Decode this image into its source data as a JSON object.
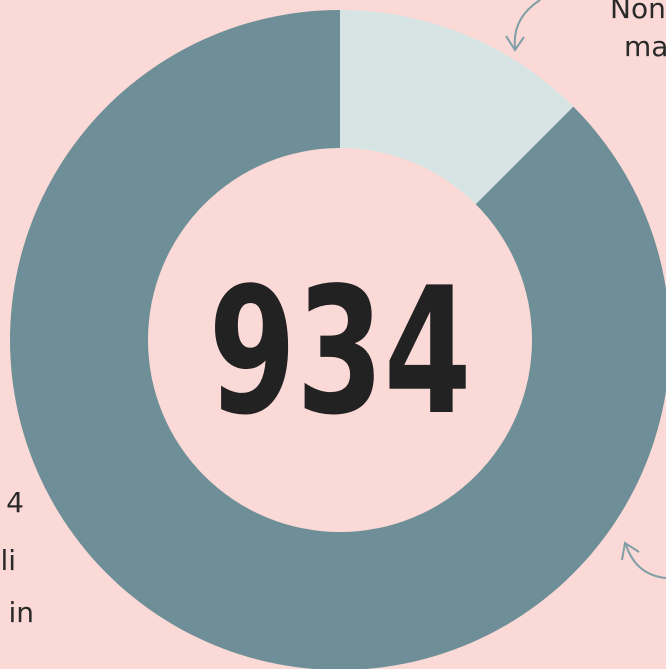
{
  "chart_data": {
    "type": "pie",
    "center_label": "934",
    "values": [
      12.5,
      87.5
    ],
    "colors": [
      "#d6e5e3",
      "#6e8f98"
    ],
    "annotations": [
      "Non",
      "ma",
      "4",
      "li",
      "in"
    ]
  }
}
